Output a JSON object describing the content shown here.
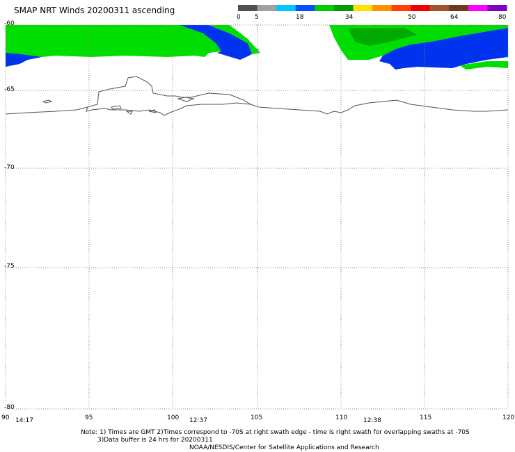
{
  "title": "SMAP NRT Winds 20200311 ascending",
  "colorbar": {
    "labels": [
      "0",
      "5",
      "18",
      "34",
      "50",
      "64",
      "80"
    ],
    "segments": [
      {
        "from": 0,
        "to": 5,
        "color": "#505050"
      },
      {
        "from": 0,
        "to": 5,
        "color": "#a0a0a0"
      },
      {
        "from": 5,
        "to": 18,
        "color": "#00c8ff"
      },
      {
        "from": 5,
        "to": 18,
        "color": "#0050ff"
      },
      {
        "from": 18,
        "to": 34,
        "color": "#00cc00"
      },
      {
        "from": 18,
        "to": 34,
        "color": "#009900"
      },
      {
        "from": 34,
        "to": 50,
        "color": "#ffe000"
      },
      {
        "from": 34,
        "to": 50,
        "color": "#ff9000"
      },
      {
        "from": 34,
        "to": 50,
        "color": "#ff4000"
      },
      {
        "from": 34,
        "to": 50,
        "color": "#ee0000"
      },
      {
        "from": 50,
        "to": 64,
        "color": "#a0522d"
      },
      {
        "from": 50,
        "to": 64,
        "color": "#6b3a1a"
      },
      {
        "from": 64,
        "to": 80,
        "color": "#ff00ff"
      },
      {
        "from": 64,
        "to": 80,
        "color": "#8000c0"
      }
    ]
  },
  "latitudes": [
    "-60",
    "-65",
    "-70",
    "-75",
    "-80"
  ],
  "longitudes": [
    "90",
    "95",
    "100",
    "105",
    "110",
    "115",
    "120"
  ],
  "swath_times": [
    "14:17",
    "12:37",
    "12:38"
  ],
  "notes": {
    "line1": "Note: 1) Times are GMT 2)Times correspond to -70S at right swath edge - time is right swath for overlapping swaths at -70S",
    "line2": "3)Data buffer is 24 hrs for 20200311",
    "line3": "NOAA/NESDIS/Center for Satellite Applications and Research"
  },
  "colors": {
    "wind_green": "#00dd00",
    "wind_dark_green": "#00aa00",
    "wind_blue": "#0033ee",
    "coast": "#505050",
    "grid": "#888888"
  }
}
